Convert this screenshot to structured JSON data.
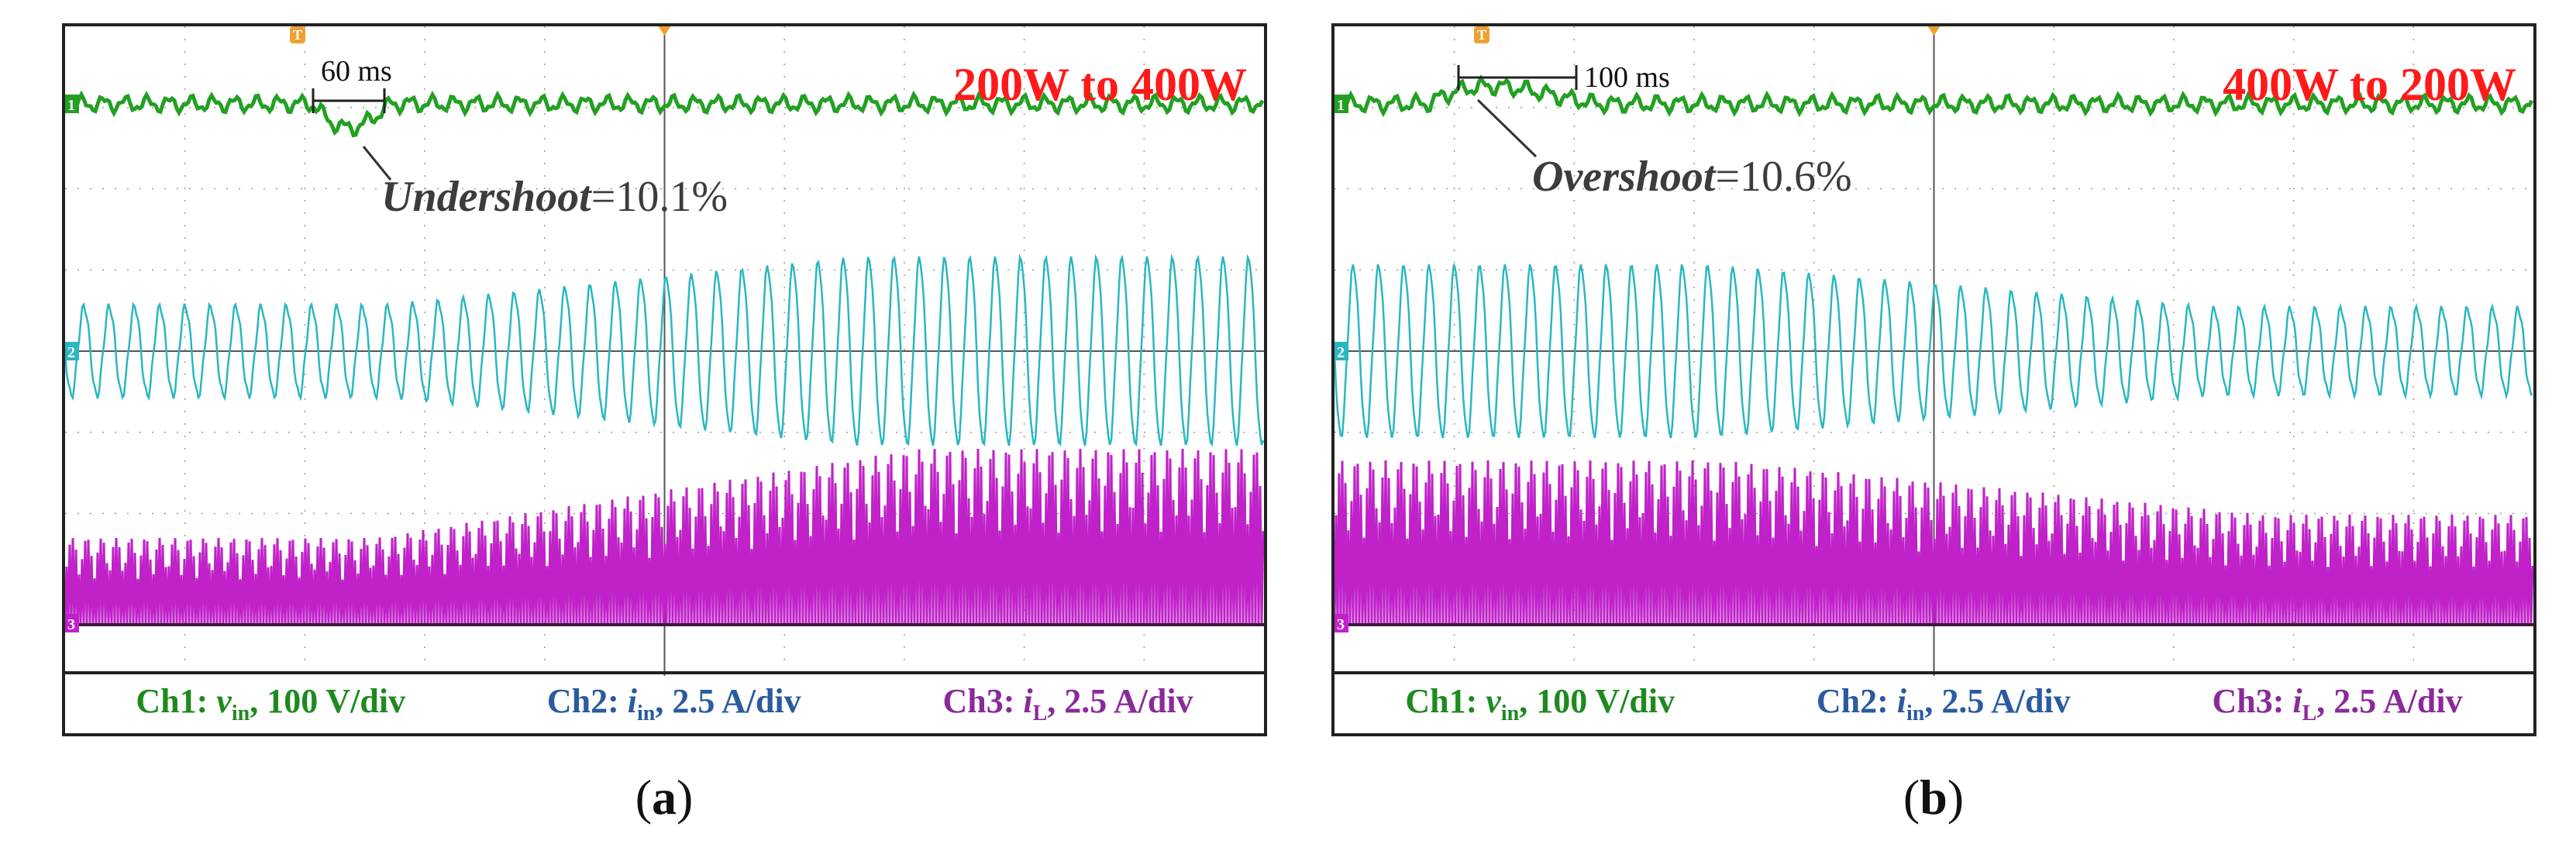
{
  "chart_data": [
    {
      "type": "line",
      "panel_label": "a",
      "title": "200W to 400W",
      "annotation_time": "60 ms",
      "annotation_label": "Undershoot",
      "annotation_value": "=10.1%",
      "series": [
        {
          "name": "Ch1",
          "signal": "v",
          "signal_sub": "in",
          "scale": "100 V/div",
          "color": "#22a022"
        },
        {
          "name": "Ch2",
          "signal": "i",
          "signal_sub": "in",
          "scale": "2.5 A/div",
          "color": "#2ab7c0"
        },
        {
          "name": "Ch3",
          "signal": "i",
          "signal_sub": "L",
          "scale": "2.5 A/div",
          "color": "#c021c9"
        }
      ]
    },
    {
      "type": "line",
      "panel_label": "b",
      "title": "400W to 200W",
      "annotation_time": "100 ms",
      "annotation_label": "Overshoot",
      "annotation_value": "=10.6%",
      "series": [
        {
          "name": "Ch1",
          "signal": "v",
          "signal_sub": "in",
          "scale": "100 V/div",
          "color": "#22a022"
        },
        {
          "name": "Ch2",
          "signal": "i",
          "signal_sub": "in",
          "scale": "2.5 A/div",
          "color": "#2ab7c0"
        },
        {
          "name": "Ch3",
          "signal": "i",
          "signal_sub": "L",
          "scale": "2.5 A/div",
          "color": "#c021c9"
        }
      ]
    }
  ],
  "colors": {
    "title": "#ff1a1a",
    "annotation": "#3c3c3c",
    "grid": "#9a9a9a",
    "marker": "#f0a030"
  }
}
